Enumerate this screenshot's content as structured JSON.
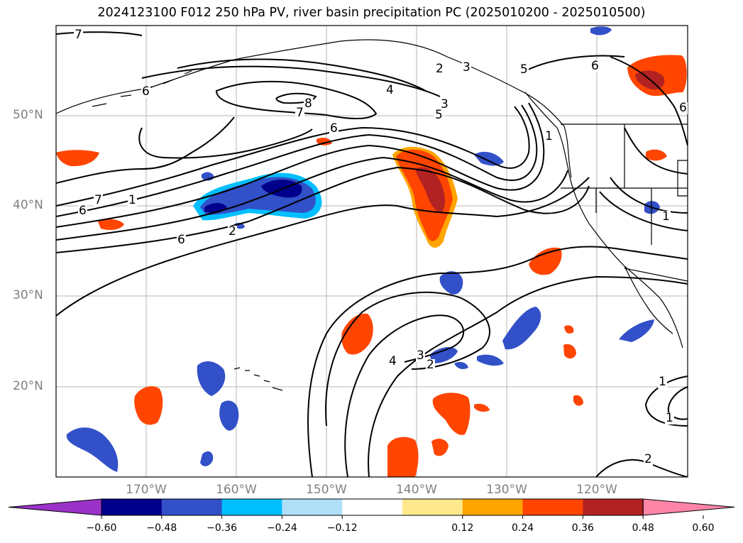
{
  "title": "2024123100 F012 250 hPa PV, river basin precipitation PC (2025010200 - 2025010500)",
  "map": {
    "lat_labels": [
      "50°N",
      "40°N",
      "30°N",
      "20°N"
    ],
    "lon_labels": [
      "170°W",
      "160°W",
      "150°W",
      "140°W",
      "130°W",
      "120°W"
    ],
    "contour_labels": [
      "7",
      "6",
      "6",
      "8",
      "7",
      "6",
      "4",
      "3",
      "2",
      "3",
      "5",
      "5",
      "6",
      "6",
      "1",
      "7",
      "6",
      "2",
      "1",
      "4",
      "3",
      "2",
      "1",
      "1",
      "2",
      "1"
    ]
  },
  "colorbar": {
    "ticks": [
      "−0.60",
      "−0.48",
      "−0.36",
      "−0.24",
      "−0.12",
      "0.12",
      "0.24",
      "0.36",
      "0.48",
      "0.60"
    ],
    "colors": [
      "#9b32c8",
      "#00008b",
      "#3250c8",
      "#00bfff",
      "#b0e0f8",
      "#ffffff",
      "#ffe98c",
      "#ffa500",
      "#ff4500",
      "#b22222",
      "#ff85a8"
    ]
  }
}
